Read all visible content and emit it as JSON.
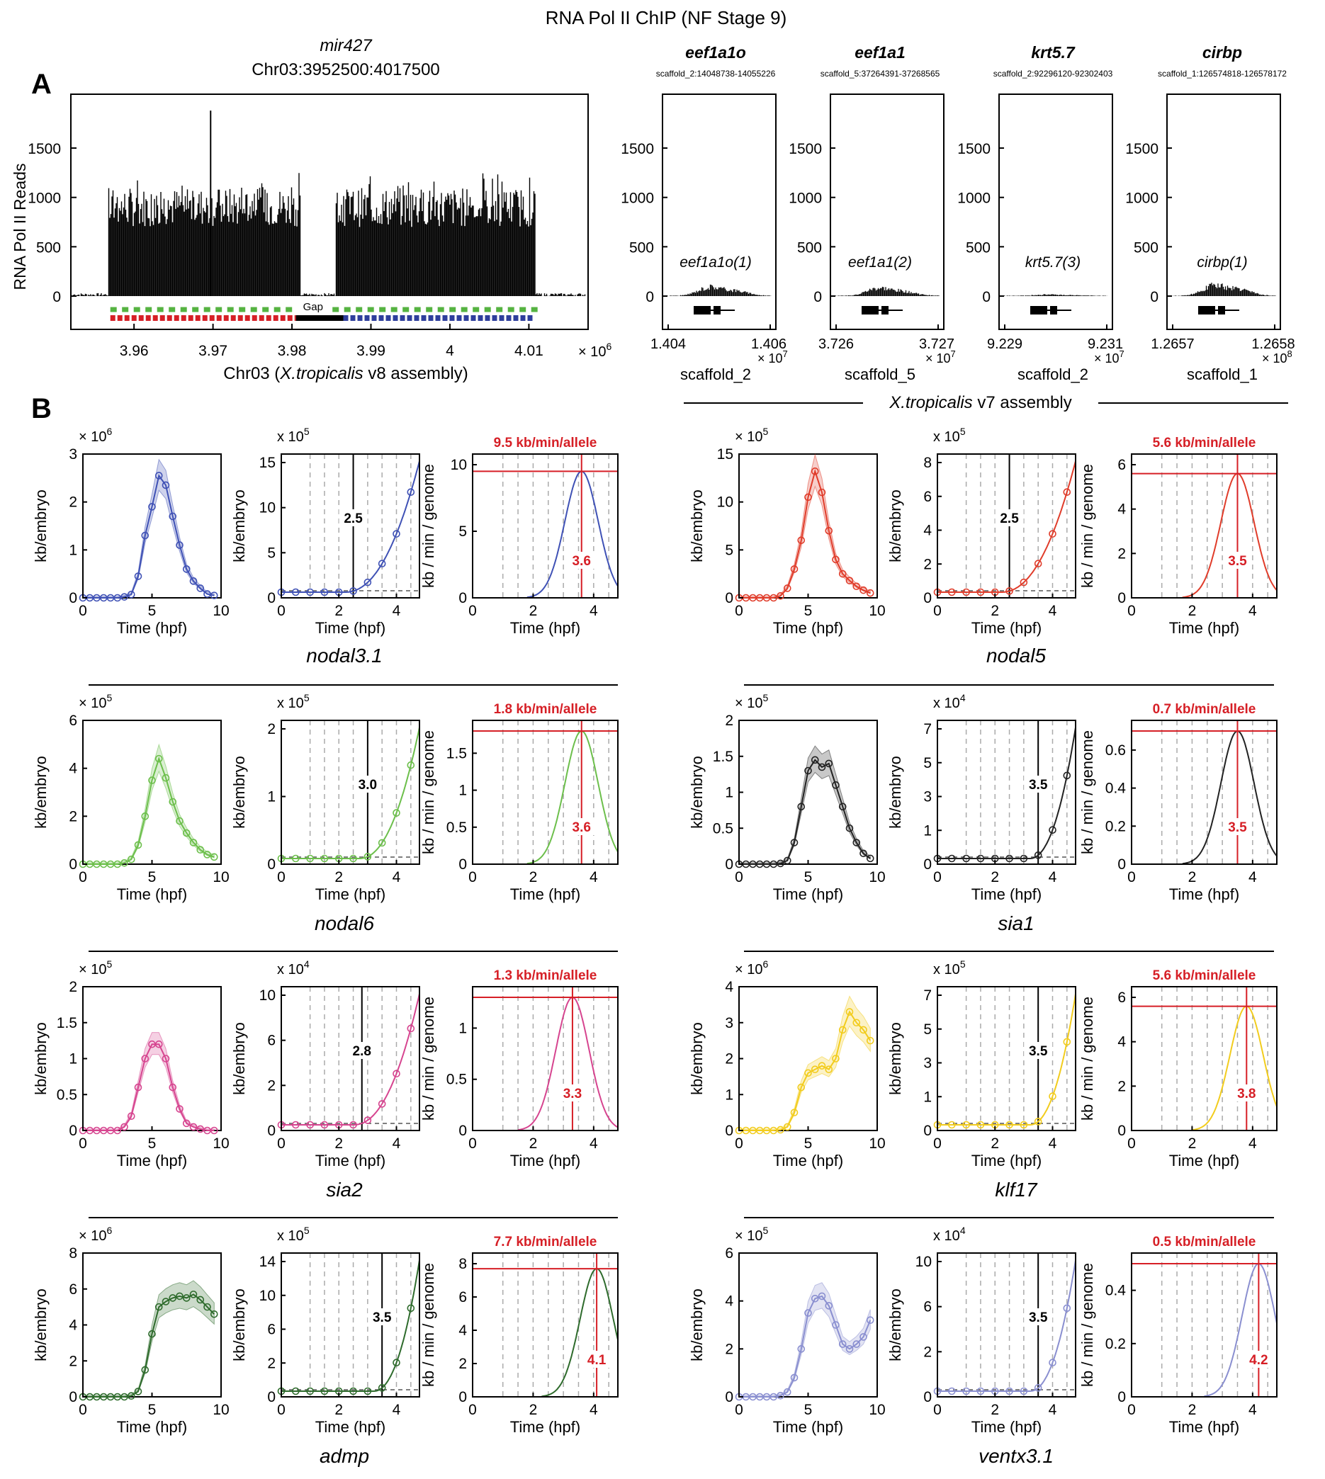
{
  "figure": {
    "title": "RNA Pol II ChIP (NF Stage 9)",
    "panel_a_letter": "A",
    "panel_b_letter": "B",
    "v7_label_italic": "X.tropicalis",
    "v7_label_rest": " v7 assembly"
  },
  "panel_a": {
    "main": {
      "gene": "mir427",
      "locus": "Chr03:3952500:4017500",
      "ylabel": "RNA Pol II Reads",
      "xlabel_pre": "Chr03 (",
      "xlabel_italic": "X.tropicalis",
      "xlabel_post": " v8 assembly)",
      "x_exponent_label": "× 10",
      "x_exponent_power": "6",
      "gap_label": "Gap",
      "xticks": [
        "3.96",
        "3.97",
        "3.98",
        "3.99",
        "4",
        "4.01"
      ],
      "yticks": [
        "0",
        "500",
        "1000",
        "1500"
      ]
    },
    "small": [
      {
        "gene": "eef1a1o",
        "coords": "scaffold_2:14048738-14055226",
        "inner": "eef1a1o(1)",
        "xticks": [
          "1.404",
          "1.406"
        ],
        "mult": "× 10",
        "power": "7",
        "xlabel": "scaffold_2",
        "yticks": [
          "0",
          "500",
          "1000",
          "1500"
        ]
      },
      {
        "gene": "eef1a1",
        "coords": "scaffold_5:37264391-37268565",
        "inner": "eef1a1(2)",
        "xticks": [
          "3.726",
          "3.727"
        ],
        "mult": "× 10",
        "power": "7",
        "xlabel": "scaffold_5",
        "yticks": [
          "0",
          "500",
          "1000",
          "1500"
        ]
      },
      {
        "gene": "krt5.7",
        "coords": "scaffold_2:92296120-92302403",
        "inner": "krt5.7(3)",
        "xticks": [
          "9.229",
          "9.231"
        ],
        "mult": "× 10",
        "power": "7",
        "xlabel": "scaffold_2",
        "yticks": [
          "0",
          "500",
          "1000",
          "1500"
        ]
      },
      {
        "gene": "cirbp",
        "coords": "scaffold_1:126574818-126578172",
        "inner": "cirbp(1)",
        "xticks": [
          "1.2657",
          "1.2658"
        ],
        "mult": "× 10",
        "power": "8",
        "xlabel": "scaffold_1",
        "yticks": [
          "0",
          "500",
          "1000",
          "1500"
        ]
      }
    ]
  },
  "panel_b": {
    "xlabel": "Time (hpf)",
    "ylabel_embryo": "kb/embryo",
    "ylabel_rate": "kb / min / genome",
    "genes": [
      {
        "name": "nodal3.1",
        "color": "#3f51b5",
        "mag1": "× 10",
        "pow1": "6",
        "p1_yticks": [
          "0",
          "1",
          "2",
          "3"
        ],
        "mag2": "x 10",
        "pow2": "5",
        "p2_yticks": [
          "0",
          "5",
          "10",
          "15"
        ],
        "p3_yticks": [
          "0",
          "5",
          "10"
        ],
        "rate": "9.5 kb/min/allele",
        "onset": "2.5",
        "peak": "3.6"
      },
      {
        "name": "nodal5",
        "color": "#e03c2a",
        "mag1": "× 10",
        "pow1": "5",
        "p1_yticks": [
          "0",
          "5",
          "10",
          "15"
        ],
        "mag2": "x 10",
        "pow2": "5",
        "p2_yticks": [
          "0",
          "2",
          "4",
          "6",
          "8"
        ],
        "p3_yticks": [
          "0",
          "2",
          "4",
          "6"
        ],
        "rate": "5.6 kb/min/allele",
        "onset": "2.5",
        "peak": "3.5"
      },
      {
        "name": "nodal6",
        "color": "#6cbf4b",
        "mag1": "× 10",
        "pow1": "5",
        "p1_yticks": [
          "0",
          "2",
          "4",
          "6"
        ],
        "mag2": "x 10",
        "pow2": "5",
        "p2_yticks": [
          "0",
          "1",
          "2"
        ],
        "p3_yticks": [
          "0",
          "0.5",
          "1",
          "1.5"
        ],
        "rate": "1.8 kb/min/allele",
        "onset": "3.0",
        "peak": "3.6"
      },
      {
        "name": "sia1",
        "color": "#222222",
        "mag1": "× 10",
        "pow1": "5",
        "p1_yticks": [
          "0",
          "0.5",
          "1",
          "1.5",
          "2"
        ],
        "mag2": "x 10",
        "pow2": "4",
        "p2_yticks": [
          "0",
          "1",
          "3",
          "5",
          "7"
        ],
        "p3_yticks": [
          "0",
          "0.2",
          "0.4",
          "0.6"
        ],
        "rate": "0.7 kb/min/allele",
        "onset": "3.5",
        "peak": "3.5"
      },
      {
        "name": "sia2",
        "color": "#d6448f",
        "mag1": "× 10",
        "pow1": "5",
        "p1_yticks": [
          "0",
          "0.5",
          "1",
          "1.5",
          "2"
        ],
        "mag2": "x 10",
        "pow2": "4",
        "p2_yticks": [
          "0",
          "2",
          "6",
          "10"
        ],
        "p3_yticks": [
          "0",
          "0.5",
          "1"
        ],
        "rate": "1.3 kb/min/allele",
        "onset": "2.8",
        "peak": "3.3"
      },
      {
        "name": "klf17",
        "color": "#f2cc1d",
        "mag1": "× 10",
        "pow1": "6",
        "p1_yticks": [
          "0",
          "1",
          "2",
          "3",
          "4"
        ],
        "mag2": "x 10",
        "pow2": "5",
        "p2_yticks": [
          "0",
          "1",
          "3",
          "5",
          "7"
        ],
        "p3_yticks": [
          "0",
          "2",
          "4",
          "6"
        ],
        "rate": "5.6 kb/min/allele",
        "onset": "3.5",
        "peak": "3.8"
      },
      {
        "name": "admp",
        "color": "#2e6b2c",
        "mag1": "× 10",
        "pow1": "6",
        "p1_yticks": [
          "0",
          "2",
          "4",
          "6",
          "8"
        ],
        "mag2": "x 10",
        "pow2": "5",
        "p2_yticks": [
          "0",
          "2",
          "6",
          "10",
          "14"
        ],
        "p3_yticks": [
          "0",
          "2",
          "4",
          "6",
          "8"
        ],
        "rate": "7.7 kb/min/allele",
        "onset": "3.5",
        "peak": "4.1"
      },
      {
        "name": "ventx3.1",
        "color": "#8a8fd0",
        "mag1": "× 10",
        "pow1": "5",
        "p1_yticks": [
          "0",
          "2",
          "4",
          "6"
        ],
        "mag2": "x 10",
        "pow2": "4",
        "p2_yticks": [
          "0",
          "2",
          "6",
          "10"
        ],
        "p3_yticks": [
          "0",
          "0.2",
          "0.4"
        ],
        "rate": "0.5 kb/min/allele",
        "onset": "3.5",
        "peak": "4.2"
      }
    ]
  },
  "chart_data": [
    {
      "type": "bar",
      "title": "mir427",
      "xlabel": "Chr03 (X.tropicalis v8 assembly)",
      "ylabel": "RNA Pol II Reads",
      "xlim": [
        3.952,
        4.0175
      ],
      "ylim": [
        0,
        1950
      ],
      "x_scale_note": "× 10^6",
      "series": [
        {
          "values_description_free": true,
          "x": [
            3.957,
            3.965,
            3.97,
            3.975,
            3.98,
            3.989,
            3.995,
            4.0,
            4.005,
            4.01
          ],
          "values": [
            950,
            1050,
            1200,
            1000,
            1050,
            1000,
            1050,
            1000,
            1050,
            1050
          ]
        }
      ]
    },
    {
      "type": "line",
      "genes": [
        "nodal3.1",
        "nodal5",
        "nodal6",
        "sia1",
        "sia2",
        "klf17",
        "admp",
        "ventx3.1"
      ],
      "xlabel": "Time (hpf)",
      "embryo_series": {
        "x": [
          0,
          0.5,
          1,
          1.5,
          2,
          2.5,
          3,
          3.5,
          4,
          4.5,
          5,
          5.5,
          6,
          6.5,
          7,
          7.5,
          8,
          8.5,
          9,
          9.5
        ],
        "nodal3.1": [
          0,
          0,
          0,
          0,
          0,
          0,
          0.02,
          0.07,
          0.45,
          1.3,
          1.9,
          2.55,
          2.35,
          1.7,
          1.1,
          0.6,
          0.35,
          0.2,
          0.08,
          0.05
        ],
        "nodal5": [
          0,
          0,
          0,
          0,
          0,
          0,
          0.2,
          1.0,
          3.0,
          6.0,
          10.5,
          13.2,
          11.0,
          7.0,
          4.0,
          2.5,
          1.8,
          1.2,
          0.8,
          0.5
        ],
        "nodal6": [
          0,
          0,
          0,
          0,
          0,
          0,
          0.05,
          0.2,
          0.8,
          2.0,
          3.5,
          4.4,
          3.6,
          2.6,
          1.8,
          1.3,
          0.9,
          0.6,
          0.4,
          0.3
        ],
        "sia1": [
          0,
          0,
          0,
          0,
          0,
          0,
          0.01,
          0.05,
          0.3,
          0.8,
          1.3,
          1.45,
          1.35,
          1.4,
          1.1,
          0.8,
          0.5,
          0.3,
          0.15,
          0.08
        ],
        "sia2": [
          0,
          0,
          0,
          0,
          0,
          0,
          0.05,
          0.2,
          0.6,
          1.0,
          1.2,
          1.2,
          1.0,
          0.6,
          0.3,
          0.1,
          0.05,
          0.02,
          0,
          0
        ],
        "klf17": [
          0,
          0,
          0,
          0,
          0,
          0,
          0.02,
          0.1,
          0.5,
          1.2,
          1.6,
          1.7,
          1.8,
          1.7,
          2.0,
          2.8,
          3.3,
          3.0,
          2.8,
          2.5
        ],
        "admp": [
          0,
          0,
          0,
          0,
          0,
          0,
          0,
          0.05,
          0.3,
          1.5,
          3.5,
          5.0,
          5.3,
          5.5,
          5.6,
          5.5,
          5.7,
          5.4,
          5.0,
          4.6
        ],
        "ventx3.1": [
          0,
          0,
          0,
          0,
          0,
          0,
          0.05,
          0.2,
          0.8,
          2.0,
          3.5,
          4.1,
          4.2,
          3.8,
          3.0,
          2.2,
          2.0,
          2.2,
          2.5,
          3.2
        ]
      },
      "onset_hpf": {
        "nodal3.1": 2.5,
        "nodal5": 2.5,
        "nodal6": 3.0,
        "sia1": 3.5,
        "sia2": 2.8,
        "klf17": 3.5,
        "admp": 3.5,
        "ventx3.1": 3.5
      },
      "peak_hpf": {
        "nodal3.1": 3.6,
        "nodal5": 3.5,
        "nodal6": 3.6,
        "sia1": 3.5,
        "sia2": 3.3,
        "klf17": 3.8,
        "admp": 4.1,
        "ventx3.1": 4.2
      },
      "peak_rate": {
        "nodal3.1": 9.5,
        "nodal5": 5.6,
        "nodal6": 1.8,
        "sia1": 0.7,
        "sia2": 1.3,
        "klf17": 5.6,
        "admp": 7.7,
        "ventx3.1": 0.5
      }
    }
  ]
}
